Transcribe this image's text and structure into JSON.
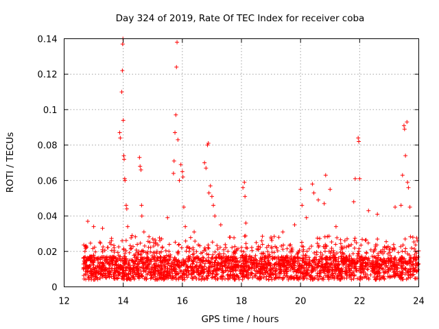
{
  "chart_data": {
    "type": "scatter",
    "title": "Day 324 of 2019, Rate Of TEC Index for receiver coba",
    "xlabel": "GPS time / hours",
    "ylabel": "ROTI / TECUs",
    "xlim": [
      12,
      24
    ],
    "ylim": [
      0,
      0.14
    ],
    "xticks": [
      12,
      14,
      16,
      18,
      20,
      22,
      24
    ],
    "xtick_labels": [
      "12",
      "14",
      "16",
      "18",
      "20",
      "22",
      "24"
    ],
    "yticks": [
      0,
      0.02,
      0.04,
      0.06,
      0.08,
      0.1,
      0.12,
      0.14
    ],
    "ytick_labels": [
      "0",
      "0.02",
      "0.04",
      "0.06",
      "0.08",
      "0.1",
      "0.12",
      "0.14"
    ],
    "grid": true,
    "marker": "+",
    "color": "#ff0000",
    "series": [
      {
        "name": "ROTI",
        "description": "Dense background of points between x=12.6 and 24 with y roughly 0.003–0.03; listed points are representative notable values",
        "points": [
          [
            12.8,
            0.037
          ],
          [
            13.0,
            0.034
          ],
          [
            13.3,
            0.033
          ],
          [
            13.6,
            0.026
          ],
          [
            13.88,
            0.087
          ],
          [
            13.9,
            0.084
          ],
          [
            13.95,
            0.11
          ],
          [
            13.97,
            0.122
          ],
          [
            13.98,
            0.137
          ],
          [
            13.99,
            0.14
          ],
          [
            14.0,
            0.094
          ],
          [
            14.02,
            0.074
          ],
          [
            14.03,
            0.072
          ],
          [
            14.05,
            0.061
          ],
          [
            14.06,
            0.06
          ],
          [
            14.1,
            0.046
          ],
          [
            14.12,
            0.044
          ],
          [
            14.15,
            0.034
          ],
          [
            14.3,
            0.029
          ],
          [
            14.55,
            0.073
          ],
          [
            14.57,
            0.068
          ],
          [
            14.6,
            0.066
          ],
          [
            14.62,
            0.046
          ],
          [
            14.63,
            0.04
          ],
          [
            14.7,
            0.031
          ],
          [
            15.0,
            0.027
          ],
          [
            15.3,
            0.027
          ],
          [
            15.5,
            0.039
          ],
          [
            15.7,
            0.064
          ],
          [
            15.72,
            0.071
          ],
          [
            15.75,
            0.087
          ],
          [
            15.78,
            0.097
          ],
          [
            15.8,
            0.124
          ],
          [
            15.82,
            0.138
          ],
          [
            15.85,
            0.083
          ],
          [
            15.9,
            0.06
          ],
          [
            15.95,
            0.069
          ],
          [
            16.0,
            0.065
          ],
          [
            16.02,
            0.062
          ],
          [
            16.05,
            0.045
          ],
          [
            16.1,
            0.034
          ],
          [
            16.4,
            0.031
          ],
          [
            16.75,
            0.07
          ],
          [
            16.8,
            0.067
          ],
          [
            16.85,
            0.08
          ],
          [
            16.88,
            0.081
          ],
          [
            16.9,
            0.053
          ],
          [
            16.95,
            0.057
          ],
          [
            17.0,
            0.051
          ],
          [
            17.05,
            0.046
          ],
          [
            17.1,
            0.04
          ],
          [
            17.3,
            0.035
          ],
          [
            17.6,
            0.028
          ],
          [
            18.05,
            0.056
          ],
          [
            18.1,
            0.059
          ],
          [
            18.12,
            0.051
          ],
          [
            18.15,
            0.036
          ],
          [
            18.5,
            0.025
          ],
          [
            19.0,
            0.028
          ],
          [
            19.4,
            0.031
          ],
          [
            19.8,
            0.035
          ],
          [
            20.0,
            0.055
          ],
          [
            20.05,
            0.046
          ],
          [
            20.2,
            0.039
          ],
          [
            20.4,
            0.058
          ],
          [
            20.45,
            0.053
          ],
          [
            20.6,
            0.049
          ],
          [
            20.8,
            0.047
          ],
          [
            20.85,
            0.063
          ],
          [
            21.0,
            0.055
          ],
          [
            21.2,
            0.034
          ],
          [
            21.5,
            0.026
          ],
          [
            21.8,
            0.048
          ],
          [
            21.85,
            0.061
          ],
          [
            21.95,
            0.084
          ],
          [
            21.97,
            0.082
          ],
          [
            22.0,
            0.061
          ],
          [
            22.3,
            0.043
          ],
          [
            22.6,
            0.041
          ],
          [
            22.9,
            0.022
          ],
          [
            23.2,
            0.045
          ],
          [
            23.4,
            0.046
          ],
          [
            23.45,
            0.063
          ],
          [
            23.5,
            0.091
          ],
          [
            23.52,
            0.089
          ],
          [
            23.55,
            0.074
          ],
          [
            23.6,
            0.093
          ],
          [
            23.62,
            0.059
          ],
          [
            23.65,
            0.056
          ],
          [
            23.7,
            0.045
          ],
          [
            23.8,
            0.028
          ],
          [
            23.95,
            0.026
          ]
        ]
      }
    ]
  }
}
